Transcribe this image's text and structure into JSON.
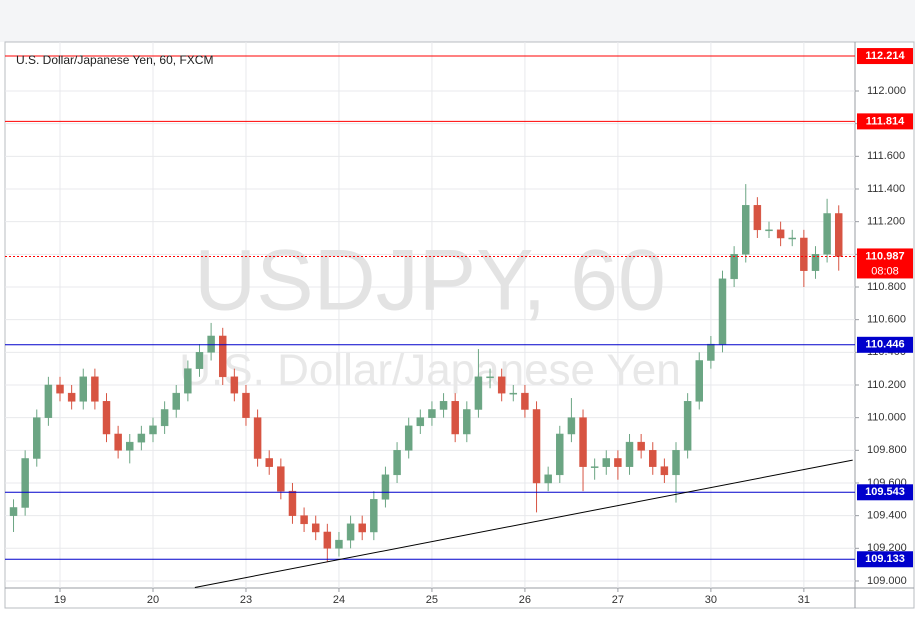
{
  "chart_data": {
    "type": "candlestick",
    "title": "U.S. Dollar/Japanese Yen, 60, FXCM",
    "watermark": "USDJPY, 60",
    "watermark_sub": "U.S. Dollar/Japanese Yen",
    "up_color": "#6ba583",
    "down_color": "#d75442",
    "grid": true,
    "xlim": [
      -14.2,
      205.2
    ],
    "xticks": [
      {
        "value": 0,
        "label": "19"
      },
      {
        "value": 24,
        "label": "20"
      },
      {
        "value": 48,
        "label": "23"
      },
      {
        "value": 72,
        "label": "24"
      },
      {
        "value": 96,
        "label": "25"
      },
      {
        "value": 120,
        "label": "26"
      },
      {
        "value": 144,
        "label": "27"
      },
      {
        "value": 168,
        "label": "30"
      },
      {
        "value": 192,
        "label": "31"
      }
    ],
    "ylim": [
      108.957,
      112.3
    ],
    "yticks": [
      {
        "value": 109.0,
        "label": "109.000"
      },
      {
        "value": 109.2,
        "label": "109.200"
      },
      {
        "value": 109.4,
        "label": "109.400"
      },
      {
        "value": 109.6,
        "label": "109.600"
      },
      {
        "value": 109.8,
        "label": "109.800"
      },
      {
        "value": 110.0,
        "label": "110.000"
      },
      {
        "value": 110.2,
        "label": "110.200"
      },
      {
        "value": 110.4,
        "label": "110.400"
      },
      {
        "value": 110.6,
        "label": "110.600"
      },
      {
        "value": 110.8,
        "label": "110.800"
      },
      {
        "value": 111.0,
        "label": "111.000"
      },
      {
        "value": 111.2,
        "label": "111.200"
      },
      {
        "value": 111.4,
        "label": "111.400"
      },
      {
        "value": 111.6,
        "label": "111.600"
      },
      {
        "value": 111.8,
        "label": "111.800"
      },
      {
        "value": 112.0,
        "label": "112.000"
      }
    ],
    "x": [
      -12,
      -9,
      -6,
      -3,
      0,
      3,
      6,
      9,
      12,
      15,
      18,
      21,
      24,
      27,
      30,
      33,
      36,
      39,
      42,
      45,
      48,
      51,
      54,
      57,
      60,
      63,
      66,
      69,
      72,
      75,
      78,
      81,
      84,
      87,
      90,
      93,
      96,
      99,
      102,
      105,
      108,
      111,
      114,
      117,
      120,
      123,
      126,
      129,
      132,
      135,
      138,
      141,
      144,
      147,
      150,
      153,
      156,
      159,
      162,
      165,
      168,
      171,
      174,
      177,
      180,
      183,
      186,
      189,
      192,
      195,
      198,
      201
    ],
    "open": [
      109.4,
      109.45,
      109.75,
      110.0,
      110.2,
      110.15,
      110.1,
      110.25,
      110.1,
      109.9,
      109.8,
      109.85,
      109.9,
      109.95,
      110.05,
      110.15,
      110.3,
      110.4,
      110.5,
      110.25,
      110.15,
      110.0,
      109.75,
      109.7,
      109.55,
      109.4,
      109.35,
      109.3,
      109.2,
      109.25,
      109.35,
      109.3,
      109.5,
      109.65,
      109.8,
      109.95,
      110.0,
      110.05,
      110.1,
      109.9,
      110.05,
      110.25,
      110.25,
      110.15,
      110.15,
      110.05,
      109.6,
      109.65,
      109.9,
      110.0,
      109.7,
      109.7,
      109.75,
      109.7,
      109.85,
      109.8,
      109.7,
      109.65,
      109.8,
      110.1,
      110.35,
      110.45,
      110.85,
      111.0,
      111.3,
      111.15,
      111.15,
      111.1,
      111.1,
      110.9,
      111.0,
      111.25
    ],
    "high": [
      109.5,
      109.8,
      110.05,
      110.25,
      110.25,
      110.2,
      110.3,
      110.3,
      110.15,
      109.95,
      109.9,
      109.95,
      110.0,
      110.1,
      110.2,
      110.35,
      110.45,
      110.58,
      110.55,
      110.3,
      110.2,
      110.05,
      109.8,
      109.75,
      109.6,
      109.45,
      109.4,
      109.35,
      109.3,
      109.4,
      109.4,
      109.55,
      109.7,
      109.85,
      110.0,
      110.05,
      110.1,
      110.15,
      110.15,
      110.1,
      110.42,
      110.3,
      110.3,
      110.2,
      110.2,
      110.1,
      109.7,
      109.95,
      110.12,
      110.05,
      109.75,
      109.8,
      109.8,
      109.9,
      109.9,
      109.85,
      109.75,
      109.85,
      110.15,
      110.4,
      110.5,
      110.9,
      111.05,
      111.43,
      111.35,
      111.2,
      111.2,
      111.15,
      111.15,
      111.05,
      111.34,
      111.3
    ],
    "low": [
      109.3,
      109.4,
      109.7,
      109.95,
      110.1,
      110.05,
      110.05,
      110.05,
      109.85,
      109.75,
      109.72,
      109.8,
      109.85,
      109.9,
      110.0,
      110.1,
      110.25,
      110.35,
      110.2,
      110.1,
      109.95,
      109.7,
      109.65,
      109.5,
      109.35,
      109.3,
      109.25,
      109.12,
      109.15,
      109.2,
      109.25,
      109.25,
      109.45,
      109.6,
      109.75,
      109.9,
      109.95,
      110.0,
      109.85,
      109.85,
      110.0,
      110.18,
      110.1,
      110.1,
      110.0,
      109.42,
      109.55,
      109.6,
      109.85,
      109.55,
      109.62,
      109.65,
      109.62,
      109.65,
      109.75,
      109.65,
      109.6,
      109.48,
      109.75,
      110.05,
      110.3,
      110.4,
      110.8,
      110.95,
      111.1,
      111.1,
      111.05,
      111.05,
      110.8,
      110.85,
      110.95,
      110.9
    ],
    "close": [
      109.45,
      109.75,
      110.0,
      110.2,
      110.15,
      110.1,
      110.25,
      110.1,
      109.9,
      109.8,
      109.85,
      109.9,
      109.95,
      110.05,
      110.15,
      110.3,
      110.4,
      110.5,
      110.25,
      110.15,
      110.0,
      109.75,
      109.7,
      109.55,
      109.4,
      109.35,
      109.3,
      109.2,
      109.25,
      109.35,
      109.3,
      109.5,
      109.65,
      109.8,
      109.95,
      110.0,
      110.05,
      110.1,
      109.9,
      110.05,
      110.25,
      110.25,
      110.15,
      110.15,
      110.05,
      109.6,
      109.65,
      109.9,
      110.0,
      109.7,
      109.7,
      109.75,
      109.7,
      109.85,
      109.8,
      109.7,
      109.65,
      109.8,
      110.1,
      110.35,
      110.45,
      110.85,
      111.0,
      111.3,
      111.15,
      111.15,
      111.1,
      111.1,
      110.9,
      111.0,
      111.25,
      110.987
    ],
    "levels": [
      {
        "value": 112.214,
        "color": "#ff0000"
      },
      {
        "value": 111.814,
        "color": "#ff0000"
      },
      {
        "value": 110.446,
        "color": "#0000cc"
      },
      {
        "value": 109.543,
        "color": "#0000cc"
      },
      {
        "value": 109.133,
        "color": "#0000cc"
      }
    ],
    "last_price": 110.987,
    "last_color": "#ff0000",
    "countdown": "08:08",
    "trendline": {
      "x": [
        34.8,
        204.6
      ],
      "y": [
        108.96,
        109.74
      ],
      "color": "#000000"
    }
  }
}
